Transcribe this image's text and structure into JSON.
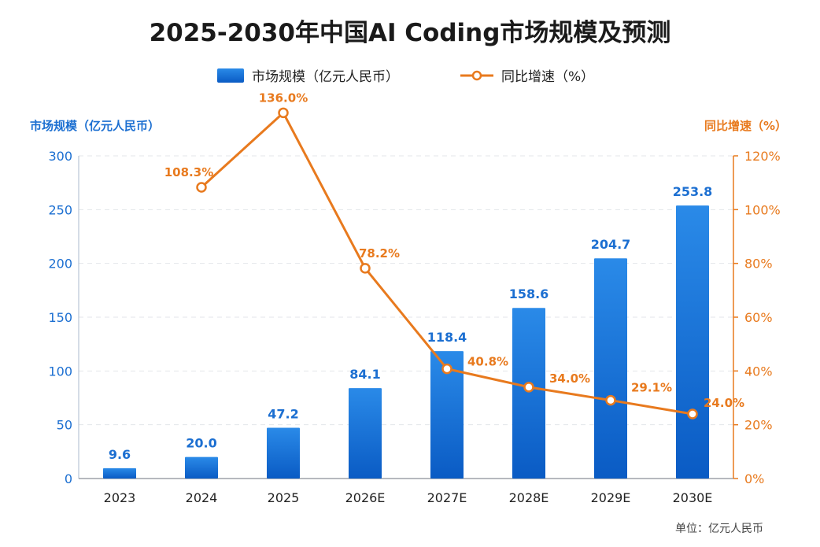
{
  "chart_data": {
    "type": "bar",
    "title": "2025-2030年中国AI Coding市场规模及预测",
    "categories": [
      "2023",
      "2024",
      "2025",
      "2026E",
      "2027E",
      "2028E",
      "2029E",
      "2030E"
    ],
    "series": [
      {
        "name": "市场规模（亿元人民币）",
        "kind": "bar",
        "axis": "left",
        "values": [
          9.6,
          20.0,
          47.2,
          84.1,
          118.4,
          158.6,
          204.7,
          253.8
        ],
        "labels": [
          "9.6",
          "20.0",
          "47.2",
          "84.1",
          "118.4",
          "158.6",
          "204.7",
          "253.8"
        ],
        "color": "#1c6fd1"
      },
      {
        "name": "同比增速（%）",
        "kind": "line",
        "axis": "right",
        "values": [
          null,
          108.3,
          136.0,
          78.2,
          40.8,
          34.0,
          29.1,
          24.0
        ],
        "labels": [
          "",
          "108.3%",
          "136.0%",
          "78.2%",
          "40.8%",
          "34.0%",
          "29.1%",
          "24.0%"
        ],
        "color": "#e87a1e"
      }
    ],
    "ylabel": "市场规模（亿元人民币）",
    "y2label": "同比增速（%）",
    "ylim": [
      0,
      300
    ],
    "y2lim": [
      0,
      120
    ],
    "yticks": [
      "0",
      "50",
      "100",
      "150",
      "200",
      "250",
      "300"
    ],
    "y2ticks": [
      "0%",
      "20%",
      "40%",
      "60%",
      "80%",
      "100%",
      "120%"
    ],
    "grid": true,
    "legend_position": "top-center",
    "unit_note": "单位：亿元人民币",
    "colors": {
      "bar_top": "#2a8ae8",
      "bar_bottom": "#0a5bc4",
      "left_axis": "#1c6fd1",
      "right_axis": "#e87a1e",
      "grid": "#e3e6ea"
    }
  }
}
